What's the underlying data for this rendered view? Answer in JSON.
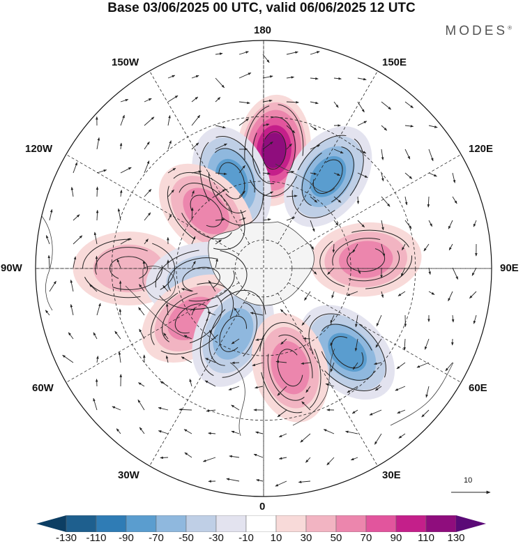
{
  "title": "Base 03/06/2025 00 UTC, valid 06/06/2025 12 UTC",
  "brand": "MODES",
  "brand_mark": "®",
  "longitude_labels": {
    "180": "180",
    "150E": "150E",
    "120E": "120E",
    "90E": "90E",
    "60E": "60E",
    "30E": "30E",
    "0": "0",
    "30W": "30W",
    "60W": "60W",
    "90W": "90W",
    "120W": "120W",
    "150W": "150W"
  },
  "reference_vector": {
    "label": "10",
    "value": 10
  },
  "colorbar": {
    "colors": [
      "#0c3e63",
      "#1e5f8e",
      "#2f7cb5",
      "#5a9dcf",
      "#8fb8de",
      "#bfcfe6",
      "#e3e3ef",
      "#ffffff",
      "#f8dad9",
      "#f2b4c2",
      "#ec86ad",
      "#e2559d",
      "#c41f8a",
      "#8f0d7d",
      "#5b0a77"
    ],
    "tick_labels": [
      "-130",
      "-110",
      "-90",
      "-70",
      "-50",
      "-30",
      "-10",
      "10",
      "30",
      "50",
      "70",
      "90",
      "110",
      "130"
    ]
  },
  "chart_data": {
    "type": "heatmap",
    "projection": "north polar stereographic",
    "levels": [
      -130,
      -110,
      -90,
      -70,
      -50,
      -30,
      -10,
      10,
      30,
      50,
      70,
      90,
      110,
      130
    ],
    "anomaly_centers": [
      {
        "lon": 175,
        "lat": 50,
        "value": 120
      },
      {
        "lon": -160,
        "lat": 58,
        "value": -85
      },
      {
        "lon": 145,
        "lat": 52,
        "value": -85
      },
      {
        "lon": -135,
        "lat": 62,
        "value": 55
      },
      {
        "lon": 95,
        "lat": 55,
        "value": 60
      },
      {
        "lon": -90,
        "lat": 45,
        "value": 40
      },
      {
        "lon": -80,
        "lat": 68,
        "value": -40
      },
      {
        "lon": -55,
        "lat": 60,
        "value": 55
      },
      {
        "lon": -25,
        "lat": 65,
        "value": -55
      },
      {
        "lon": 45,
        "lat": 50,
        "value": -80
      },
      {
        "lon": 15,
        "lat": 55,
        "value": 55
      }
    ]
  }
}
